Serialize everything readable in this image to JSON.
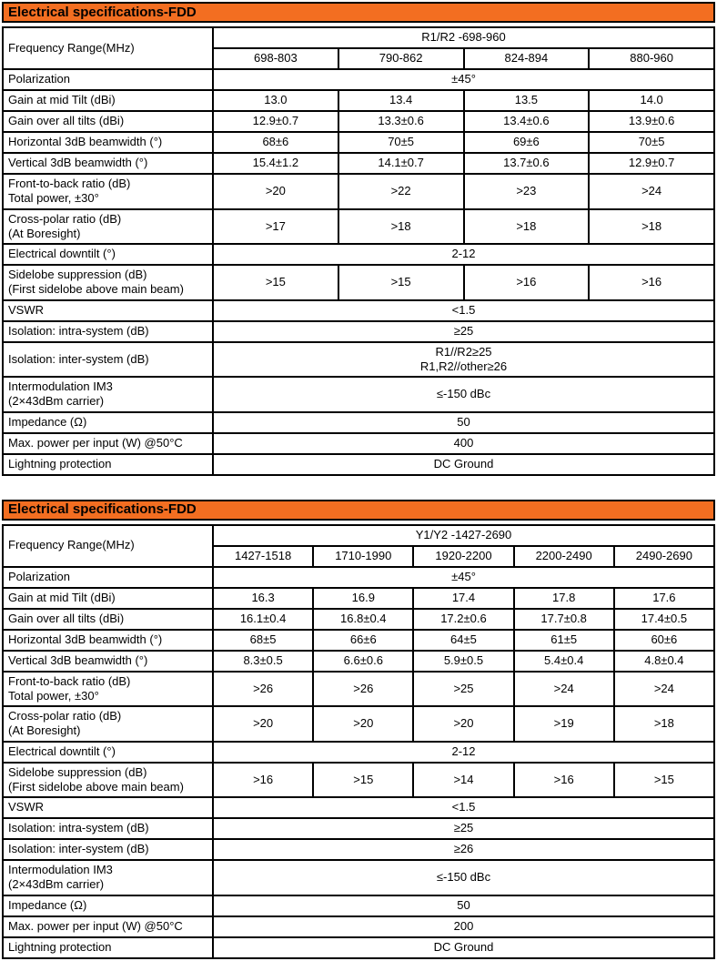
{
  "colors": {
    "header_bg": "#F36E21",
    "header_text": "#000000",
    "border": "#000000",
    "text": "#000000",
    "cell_bg": "#FFFFFF"
  },
  "tables": [
    {
      "title": "Electrical specifications-FDD",
      "frequency": {
        "label": "Frequency Range(MHz)",
        "group": "R1/R2 -698-960",
        "ranges": [
          "698-803",
          "790-862",
          "824-894",
          "880-960"
        ]
      },
      "rows": [
        {
          "label": [
            "Polarization"
          ],
          "values": [
            "±45°"
          ],
          "span": true
        },
        {
          "label": [
            "Gain at mid Tilt (dBi)"
          ],
          "values": [
            "13.0",
            "13.4",
            "13.5",
            "14.0"
          ]
        },
        {
          "label": [
            "Gain over all tilts (dBi)"
          ],
          "values": [
            "12.9±0.7",
            "13.3±0.6",
            "13.4±0.6",
            "13.9±0.6"
          ]
        },
        {
          "label": [
            "Horizontal 3dB beamwidth (°)"
          ],
          "values": [
            "68±6",
            "70±5",
            "69±6",
            "70±5"
          ]
        },
        {
          "label": [
            "Vertical 3dB beamwidth (°)"
          ],
          "values": [
            "15.4±1.2",
            "14.1±0.7",
            "13.7±0.6",
            "12.9±0.7"
          ]
        },
        {
          "label": [
            "Front-to-back ratio (dB)",
            "Total power, ±30°"
          ],
          "values": [
            ">20",
            ">22",
            ">23",
            ">24"
          ]
        },
        {
          "label": [
            "Cross-polar ratio (dB)",
            "(At Boresight)"
          ],
          "values": [
            ">17",
            ">18",
            ">18",
            ">18"
          ]
        },
        {
          "label": [
            "Electrical downtilt (°)"
          ],
          "values": [
            "2-12"
          ],
          "span": true
        },
        {
          "label": [
            "Sidelobe suppression (dB)",
            "(First sidelobe above main beam)"
          ],
          "values": [
            ">15",
            ">15",
            ">16",
            ">16"
          ]
        },
        {
          "label": [
            "VSWR"
          ],
          "values": [
            "<1.5"
          ],
          "span": true
        },
        {
          "label": [
            "Isolation: intra-system (dB)"
          ],
          "values": [
            "≥25"
          ],
          "span": true
        },
        {
          "label": [
            "Isolation: inter-system (dB)"
          ],
          "values": [
            "R1//R2≥25\nR1,R2//other≥26"
          ],
          "span": true
        },
        {
          "label": [
            "Intermodulation IM3",
            "(2×43dBm carrier)"
          ],
          "values": [
            "≤-150 dBc"
          ],
          "span": true
        },
        {
          "label": [
            "Impedance (Ω)"
          ],
          "values": [
            "50"
          ],
          "span": true
        },
        {
          "label": [
            "Max. power per input (W) @50°C"
          ],
          "values": [
            "400"
          ],
          "span": true
        },
        {
          "label": [
            "Lightning protection"
          ],
          "values": [
            "DC Ground"
          ],
          "span": true
        }
      ]
    },
    {
      "title": "Electrical specifications-FDD",
      "frequency": {
        "label": "Frequency Range(MHz)",
        "group": "Y1/Y2 -1427-2690",
        "ranges": [
          "1427-1518",
          "1710-1990",
          "1920-2200",
          "2200-2490",
          "2490-2690"
        ]
      },
      "rows": [
        {
          "label": [
            "Polarization"
          ],
          "values": [
            "±45°"
          ],
          "span": true
        },
        {
          "label": [
            "Gain at mid Tilt (dBi)"
          ],
          "values": [
            "16.3",
            "16.9",
            "17.4",
            "17.8",
            "17.6"
          ]
        },
        {
          "label": [
            "Gain over all tilts (dBi)"
          ],
          "values": [
            "16.1±0.4",
            "16.8±0.4",
            "17.2±0.6",
            "17.7±0.8",
            "17.4±0.5"
          ]
        },
        {
          "label": [
            "Horizontal 3dB beamwidth (°)"
          ],
          "values": [
            "68±5",
            "66±6",
            "64±5",
            "61±5",
            "60±6"
          ]
        },
        {
          "label": [
            "Vertical 3dB beamwidth (°)"
          ],
          "values": [
            "8.3±0.5",
            "6.6±0.6",
            "5.9±0.5",
            "5.4±0.4",
            "4.8±0.4"
          ]
        },
        {
          "label": [
            "Front-to-back ratio (dB)",
            "Total power, ±30°"
          ],
          "values": [
            ">26",
            ">26",
            ">25",
            ">24",
            ">24"
          ]
        },
        {
          "label": [
            "Cross-polar ratio (dB)",
            "(At Boresight)"
          ],
          "values": [
            ">20",
            ">20",
            ">20",
            ">19",
            ">18"
          ]
        },
        {
          "label": [
            "Electrical downtilt (°)"
          ],
          "values": [
            "2-12"
          ],
          "span": true
        },
        {
          "label": [
            "Sidelobe suppression (dB)",
            "(First sidelobe above main beam)"
          ],
          "values": [
            ">16",
            ">15",
            ">14",
            ">16",
            ">15"
          ]
        },
        {
          "label": [
            "VSWR"
          ],
          "values": [
            "<1.5"
          ],
          "span": true
        },
        {
          "label": [
            "Isolation: intra-system (dB)"
          ],
          "values": [
            "≥25"
          ],
          "span": true
        },
        {
          "label": [
            "Isolation: inter-system (dB)"
          ],
          "values": [
            "≥26"
          ],
          "span": true
        },
        {
          "label": [
            "Intermodulation IM3",
            "(2×43dBm carrier)"
          ],
          "values": [
            "≤-150 dBc"
          ],
          "span": true
        },
        {
          "label": [
            "Impedance (Ω)"
          ],
          "values": [
            "50"
          ],
          "span": true
        },
        {
          "label": [
            "Max. power per input (W) @50°C"
          ],
          "values": [
            "200"
          ],
          "span": true
        },
        {
          "label": [
            "Lightning protection"
          ],
          "values": [
            "DC Ground"
          ],
          "span": true
        }
      ]
    }
  ]
}
